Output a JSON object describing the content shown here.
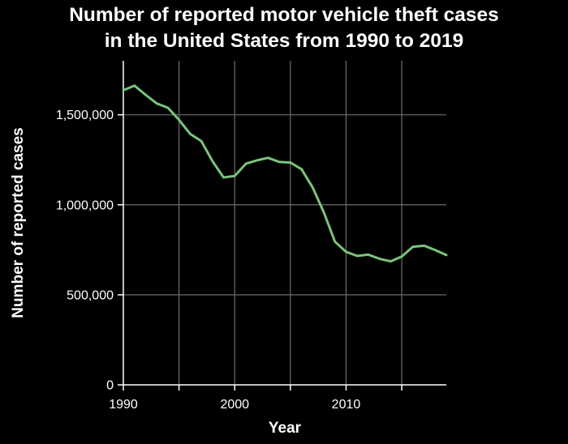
{
  "chart_data": {
    "type": "line",
    "title_lines": [
      "Number of reported motor vehicle theft cases",
      "in the United States from 1990 to 2019"
    ],
    "xlabel": "Year",
    "ylabel": "Number of reported cases",
    "x_ticks": [
      {
        "value": 1990,
        "label": "1990"
      },
      {
        "value": 1995,
        "label": ""
      },
      {
        "value": 2000,
        "label": "2000"
      },
      {
        "value": 2005,
        "label": ""
      },
      {
        "value": 2010,
        "label": "2010"
      },
      {
        "value": 2015,
        "label": ""
      }
    ],
    "y_ticks": [
      {
        "value": 0,
        "label": "0"
      },
      {
        "value": 500000,
        "label": "500,000"
      },
      {
        "value": 1000000,
        "label": "1,000,000"
      },
      {
        "value": 1500000,
        "label": "1,500,000"
      }
    ],
    "xlim": [
      1990,
      2019
    ],
    "ylim": [
      0,
      1800000
    ],
    "grid": true,
    "line_color": "#7bc47a",
    "background": "#000000",
    "text_color": "#ffffff",
    "series": [
      {
        "x": [
          1990,
          1991,
          1992,
          1993,
          1994,
          1995,
          1996,
          1997,
          1998,
          1999,
          2000,
          2001,
          2002,
          2003,
          2004,
          2005,
          2006,
          2007,
          2008,
          2009,
          2010,
          2011,
          2012,
          2013,
          2014,
          2015,
          2016,
          2017,
          2018,
          2019
        ],
        "values": [
          1636000,
          1662000,
          1611000,
          1563000,
          1539000,
          1472000,
          1394000,
          1354000,
          1243000,
          1152000,
          1160000,
          1228000,
          1247000,
          1261000,
          1238000,
          1235000,
          1198000,
          1096000,
          959000,
          795000,
          739000,
          716000,
          723000,
          700000,
          686000,
          713000,
          767000,
          773000,
          749000,
          721000
        ]
      }
    ]
  }
}
